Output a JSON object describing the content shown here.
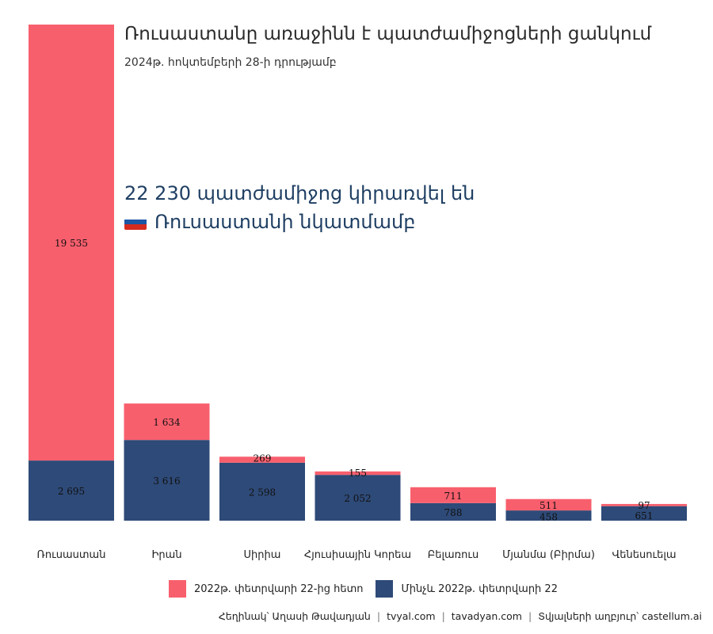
{
  "header": {
    "title": "Ռուսաստանը առաջինն է պատժամիջոցների ցանկում",
    "subtitle": "2024թ. հոկտեմբերի 28-ի դրությամբ"
  },
  "annotation": {
    "line1": "22 230 պատժամիջոց կիրառվել են",
    "line2": "Ռուսաստանի նկատմամբ",
    "flag_colors": [
      "#ffffff",
      "#1c57a5",
      "#d52b1e"
    ]
  },
  "legend": {
    "after_label": "2022թ. փետրվարի 22-ից հետո",
    "before_label": "Մինչև 2022թ. փետրվարի 22"
  },
  "footer": {
    "author": "Հեղինակ՝ Աղասի Թավադյան",
    "site1": "tvyal.com",
    "site2": "tavadyan.com",
    "source": "Տվյալների աղբյուր՝ castellum.ai",
    "divider": "|"
  },
  "colors": {
    "after": "#f85f6d",
    "before": "#2e4a78"
  },
  "chart_data": {
    "type": "bar",
    "stacked": true,
    "categories": [
      "Ռուսաստան",
      "Իրան",
      "Սիրիա",
      "Հյուսիսային Կորեա",
      "Բելառուս",
      "Մյանմա (Բիրմա)",
      "Վենեսուելա"
    ],
    "series": [
      {
        "name": "Մինչև 2022թ. փետրվարի 22",
        "values": [
          2695,
          3616,
          2598,
          2052,
          788,
          458,
          651
        ]
      },
      {
        "name": "2022թ. փետրվարի 22-ից հետո",
        "values": [
          19535,
          1634,
          269,
          155,
          711,
          511,
          97
        ]
      }
    ],
    "value_labels": {
      "before": [
        "2 695",
        "3 616",
        "2 598",
        "2 052",
        "788",
        "458",
        "651"
      ],
      "after": [
        "19 535",
        "1 634",
        "269",
        "155",
        "711",
        "511",
        "97"
      ]
    },
    "ylim": [
      0,
      22230
    ],
    "grid": false,
    "legend_position": "bottom"
  }
}
